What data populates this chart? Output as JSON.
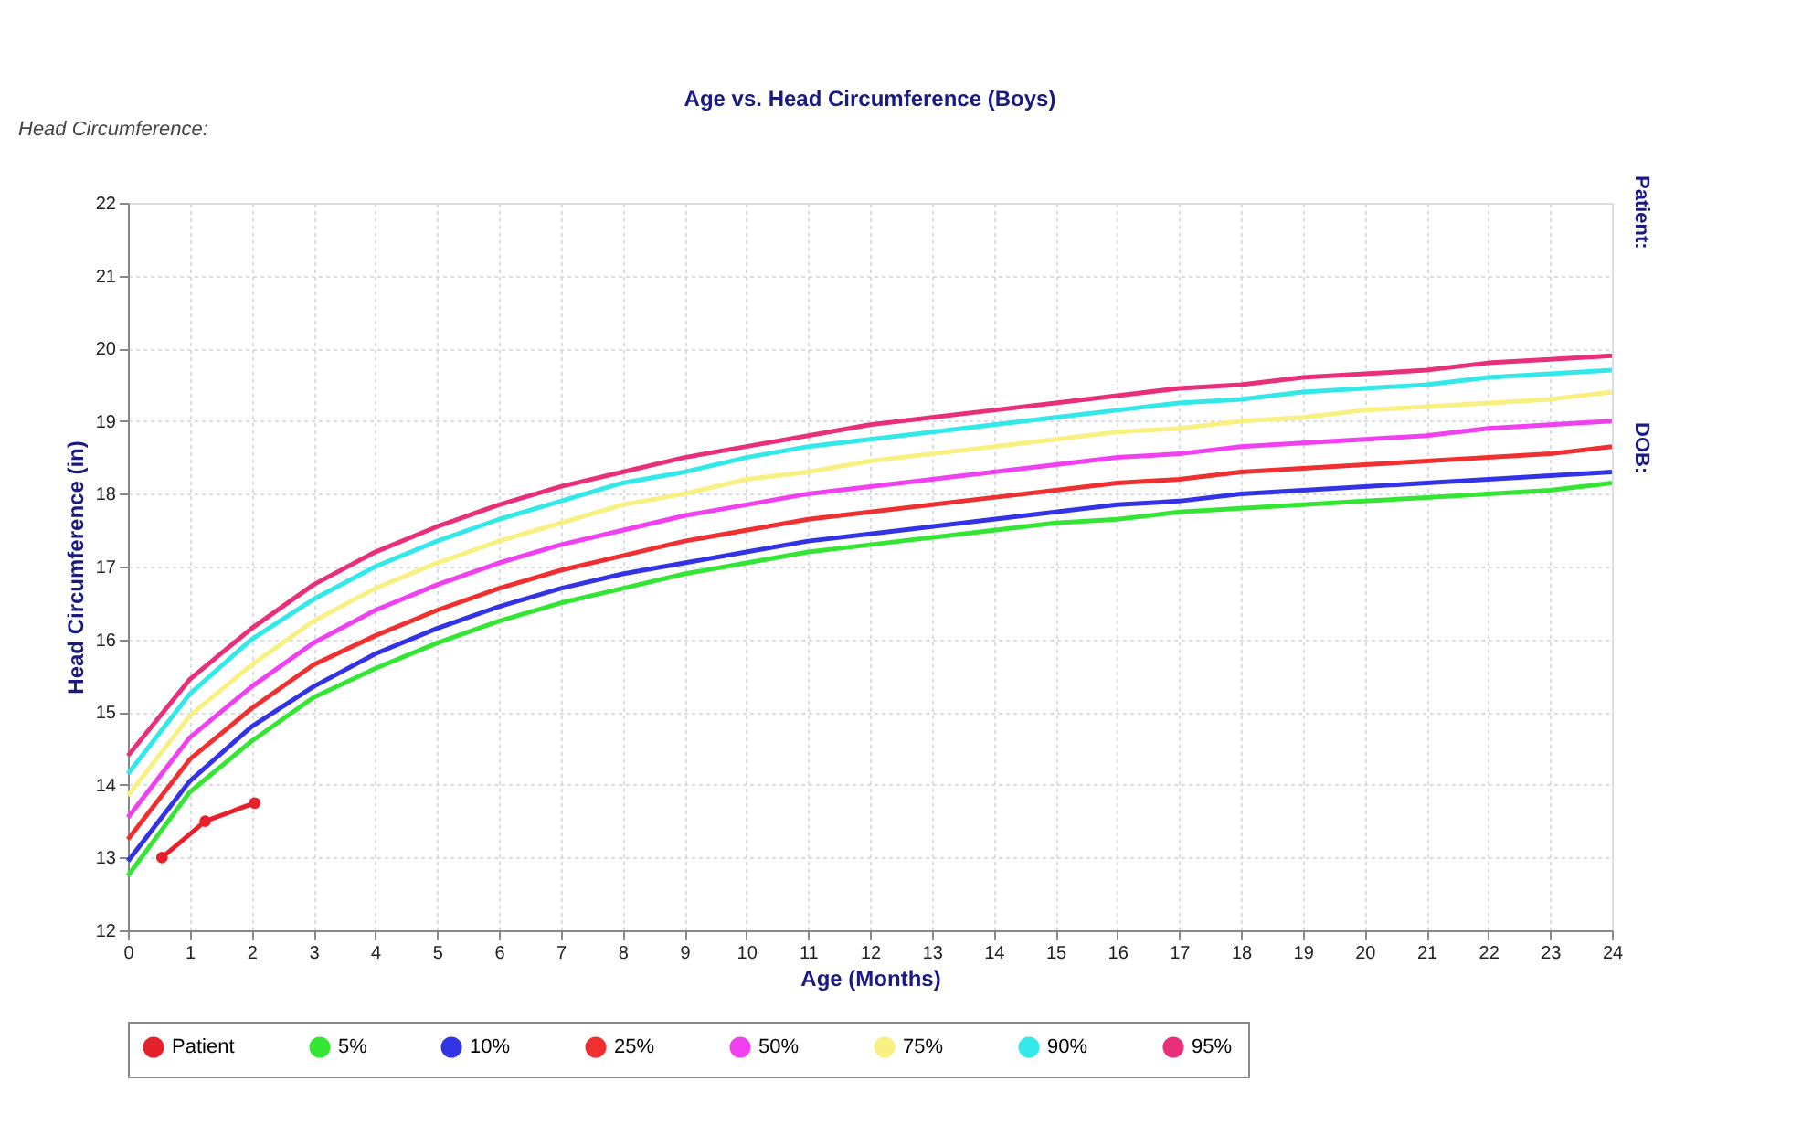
{
  "chart_data": {
    "type": "line",
    "title": "Age vs. Head Circumference (Boys)",
    "xlabel": "Age (Months)",
    "ylabel": "Head Circumference (in)",
    "annotations": [
      "Head Circumference:",
      "Patient:",
      "DOB:"
    ],
    "x": [
      0,
      1,
      2,
      3,
      4,
      5,
      6,
      7,
      8,
      9,
      10,
      11,
      12,
      13,
      14,
      15,
      16,
      17,
      18,
      19,
      20,
      21,
      22,
      23,
      24
    ],
    "xlim": [
      0,
      24
    ],
    "xticks": [
      0,
      1,
      2,
      3,
      4,
      5,
      6,
      7,
      8,
      9,
      10,
      11,
      12,
      13,
      14,
      15,
      16,
      17,
      18,
      19,
      20,
      21,
      22,
      23,
      24
    ],
    "ylim": [
      12,
      22
    ],
    "yticks": [
      12,
      13,
      14,
      15,
      16,
      17,
      18,
      19,
      20,
      21,
      22
    ],
    "grid": true,
    "legend": "bottom",
    "line_style": "solid",
    "series": [
      {
        "name": "Patient",
        "color": "#e8202a",
        "marker": "circle",
        "x": [
          0.55,
          1.25,
          2.05
        ],
        "values": [
          13.0,
          13.5,
          13.75
        ]
      },
      {
        "name": "5%",
        "color": "#33e633",
        "marker": "none",
        "values": [
          12.75,
          13.9,
          14.6,
          15.2,
          15.6,
          15.95,
          16.25,
          16.5,
          16.7,
          16.9,
          17.05,
          17.2,
          17.3,
          17.4,
          17.5,
          17.6,
          17.65,
          17.75,
          17.8,
          17.85,
          17.9,
          17.95,
          18.0,
          18.05,
          18.15
        ]
      },
      {
        "name": "10%",
        "color": "#3333e6",
        "marker": "none",
        "values": [
          12.95,
          14.05,
          14.8,
          15.35,
          15.8,
          16.15,
          16.45,
          16.7,
          16.9,
          17.05,
          17.2,
          17.35,
          17.45,
          17.55,
          17.65,
          17.75,
          17.85,
          17.9,
          18.0,
          18.05,
          18.1,
          18.15,
          18.2,
          18.25,
          18.3
        ]
      },
      {
        "name": "25%",
        "color": "#f03030",
        "marker": "none",
        "values": [
          13.25,
          14.35,
          15.05,
          15.65,
          16.05,
          16.4,
          16.7,
          16.95,
          17.15,
          17.35,
          17.5,
          17.65,
          17.75,
          17.85,
          17.95,
          18.05,
          18.15,
          18.2,
          18.3,
          18.35,
          18.4,
          18.45,
          18.5,
          18.55,
          18.65
        ]
      },
      {
        "name": "50%",
        "color": "#f040f0",
        "marker": "none",
        "values": [
          13.55,
          14.65,
          15.35,
          15.95,
          16.4,
          16.75,
          17.05,
          17.3,
          17.5,
          17.7,
          17.85,
          18.0,
          18.1,
          18.2,
          18.3,
          18.4,
          18.5,
          18.55,
          18.65,
          18.7,
          18.75,
          18.8,
          18.9,
          18.95,
          19.0
        ]
      },
      {
        "name": "75%",
        "color": "#f8f080",
        "marker": "none",
        "values": [
          13.85,
          14.95,
          15.65,
          16.25,
          16.7,
          17.05,
          17.35,
          17.6,
          17.85,
          18.0,
          18.2,
          18.3,
          18.45,
          18.55,
          18.65,
          18.75,
          18.85,
          18.9,
          19.0,
          19.05,
          19.15,
          19.2,
          19.25,
          19.3,
          19.4
        ]
      },
      {
        "name": "90%",
        "color": "#33e8e8",
        "marker": "none",
        "values": [
          14.15,
          15.25,
          16.0,
          16.55,
          17.0,
          17.35,
          17.65,
          17.9,
          18.15,
          18.3,
          18.5,
          18.65,
          18.75,
          18.85,
          18.95,
          19.05,
          19.15,
          19.25,
          19.3,
          19.4,
          19.45,
          19.5,
          19.6,
          19.65,
          19.7
        ]
      },
      {
        "name": "95%",
        "color": "#e8307a",
        "marker": "none",
        "values": [
          14.4,
          15.45,
          16.15,
          16.75,
          17.2,
          17.55,
          17.85,
          18.1,
          18.3,
          18.5,
          18.65,
          18.8,
          18.95,
          19.05,
          19.15,
          19.25,
          19.35,
          19.45,
          19.5,
          19.6,
          19.65,
          19.7,
          19.8,
          19.85,
          19.9
        ]
      }
    ]
  }
}
